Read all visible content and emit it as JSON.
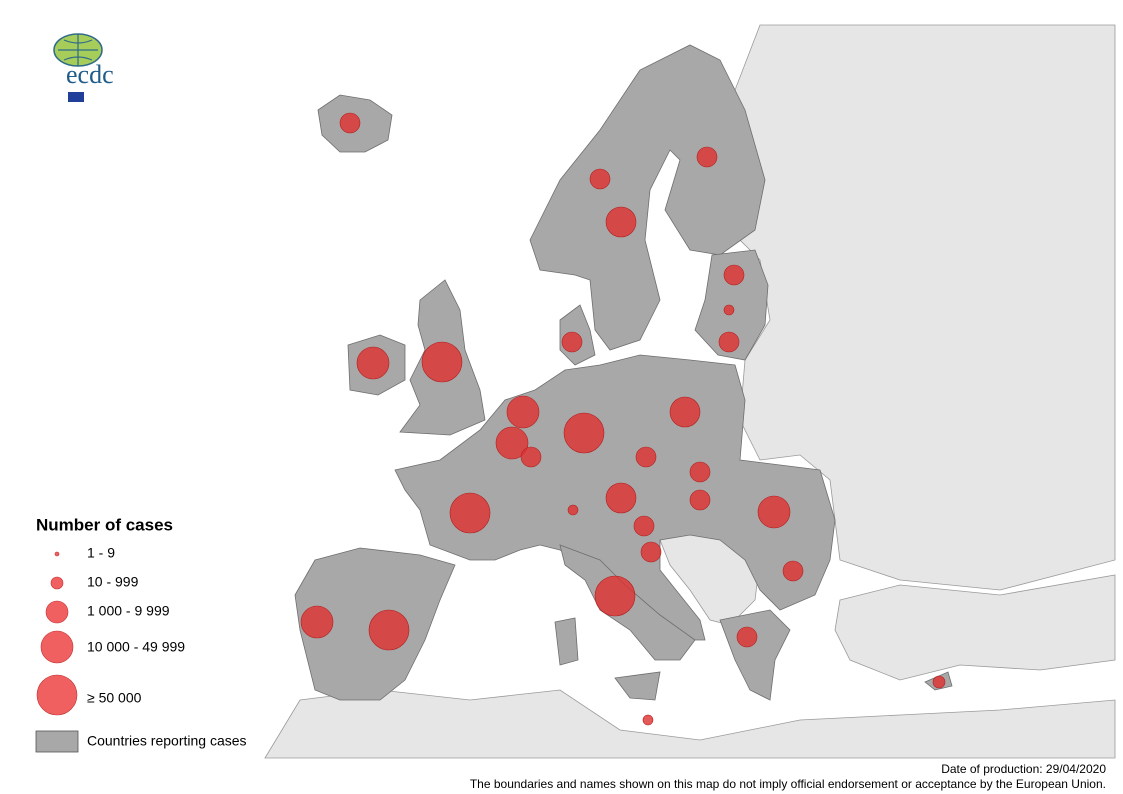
{
  "logo": {
    "text": "ecdc"
  },
  "legend": {
    "title": "Number of cases",
    "items": [
      "1 - 9",
      "10 - 999",
      "1 000 - 9 999",
      "10 000 - 49 999",
      "≥ 50 000"
    ],
    "reporting": "Countries reporting cases"
  },
  "footer": {
    "date": "Date of production: 29/04/2020",
    "disclaimer": "The boundaries and names shown on this map do not imply official endorsement or acceptance by the European Union."
  }
}
